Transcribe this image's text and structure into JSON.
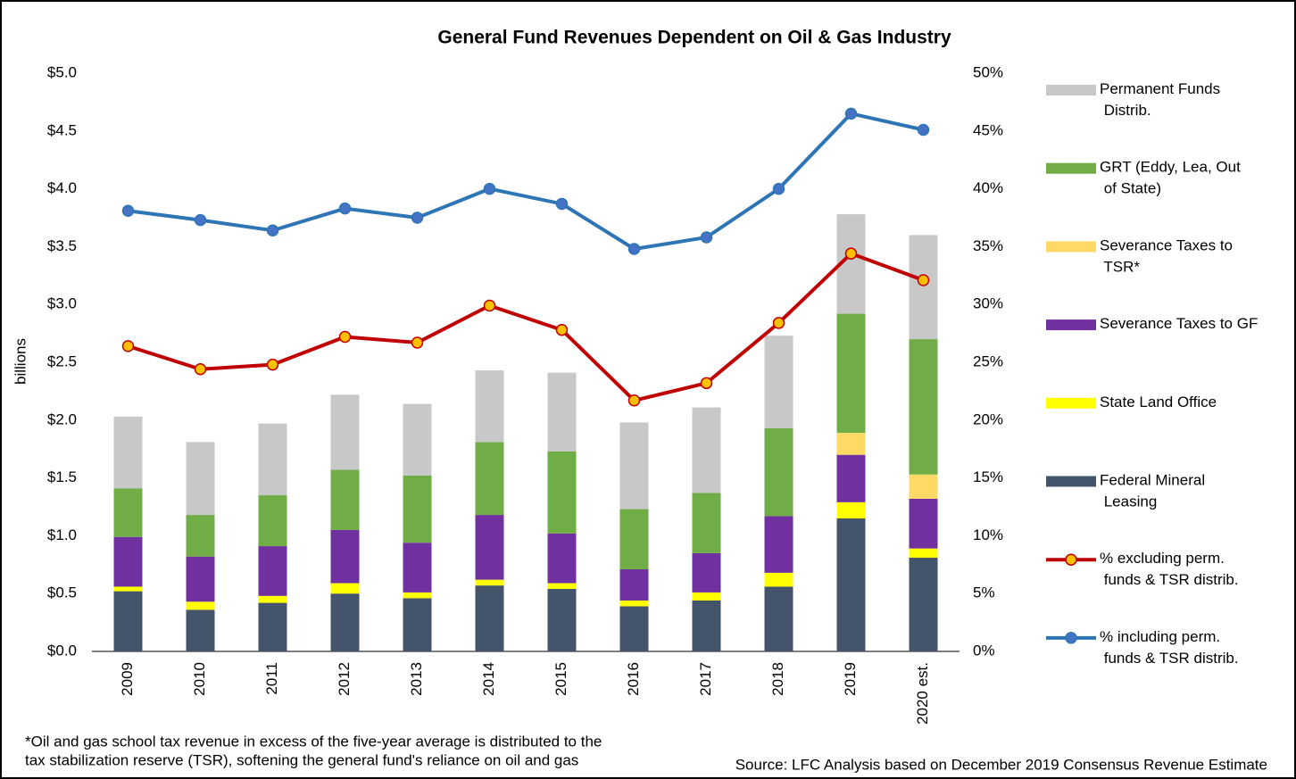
{
  "chart_data": {
    "type": "bar",
    "stacked": true,
    "title": "General Fund Revenues Dependent on Oil & Gas Industry",
    "y_label": "billions",
    "categories": [
      "2009",
      "2010",
      "2011",
      "2012",
      "2013",
      "2014",
      "2015",
      "2016",
      "2017",
      "2018",
      "2019",
      "2020 est."
    ],
    "ylim": [
      0,
      5
    ],
    "yticks": [
      {
        "value": 0,
        "label": "$0.0"
      },
      {
        "value": 0.5,
        "label": "$0.5"
      },
      {
        "value": 1,
        "label": "$1.0"
      },
      {
        "value": 1.5,
        "label": "$1.5"
      },
      {
        "value": 2,
        "label": "$2.0"
      },
      {
        "value": 2.5,
        "label": "$2.5"
      },
      {
        "value": 3,
        "label": "$3.0"
      },
      {
        "value": 3.5,
        "label": "$3.5"
      },
      {
        "value": 4,
        "label": "$4.0"
      },
      {
        "value": 4.5,
        "label": "$4.5"
      },
      {
        "value": 5,
        "label": "$5.0"
      }
    ],
    "y2lim": [
      0,
      50
    ],
    "y2ticks": [
      {
        "value": 0,
        "label": "0%"
      },
      {
        "value": 5,
        "label": "5%"
      },
      {
        "value": 10,
        "label": "10%"
      },
      {
        "value": 15,
        "label": "15%"
      },
      {
        "value": 20,
        "label": "20%"
      },
      {
        "value": 25,
        "label": "25%"
      },
      {
        "value": 30,
        "label": "30%"
      },
      {
        "value": 35,
        "label": "35%"
      },
      {
        "value": 40,
        "label": "40%"
      },
      {
        "value": 45,
        "label": "45%"
      },
      {
        "value": 50,
        "label": "50%"
      }
    ],
    "series": [
      {
        "name": "Federal Mineral Leasing",
        "type": "bar",
        "color": "#44546a",
        "values": [
          0.52,
          0.36,
          0.42,
          0.5,
          0.46,
          0.57,
          0.54,
          0.39,
          0.44,
          0.56,
          1.15,
          0.81
        ]
      },
      {
        "name": "State Land Office",
        "type": "bar",
        "color": "#ffff00",
        "values": [
          0.04,
          0.07,
          0.06,
          0.09,
          0.05,
          0.05,
          0.05,
          0.05,
          0.07,
          0.12,
          0.14,
          0.08
        ]
      },
      {
        "name": "Severance Taxes to GF",
        "type": "bar",
        "color": "#7030a0",
        "values": [
          0.43,
          0.39,
          0.43,
          0.46,
          0.43,
          0.56,
          0.43,
          0.27,
          0.34,
          0.49,
          0.41,
          0.43
        ]
      },
      {
        "name": "Severance Taxes to TSR*",
        "type": "bar",
        "color": "#ffd966",
        "values": [
          0,
          0,
          0,
          0,
          0,
          0,
          0,
          0,
          0,
          0,
          0.19,
          0.21
        ]
      },
      {
        "name": "GRT (Eddy, Lea, Out of State)",
        "type": "bar",
        "color": "#70ad47",
        "values": [
          0.42,
          0.36,
          0.44,
          0.52,
          0.58,
          0.63,
          0.71,
          0.52,
          0.52,
          0.76,
          1.03,
          1.17
        ]
      },
      {
        "name": "Permanent Funds Distrib.",
        "type": "bar",
        "color": "#c8c8c8",
        "values": [
          0.62,
          0.63,
          0.62,
          0.65,
          0.62,
          0.62,
          0.68,
          0.75,
          0.74,
          0.8,
          0.86,
          0.9
        ]
      },
      {
        "name": "% excluding perm. funds & TSR distrib.",
        "type": "line",
        "axis": "y2",
        "color": "#c00000",
        "marker_color": "#ffc000",
        "values": [
          26.4,
          24.4,
          24.8,
          27.2,
          26.7,
          29.9,
          27.8,
          21.7,
          23.2,
          28.4,
          34.4,
          32.1
        ]
      },
      {
        "name": "% including perm. funds & TSR distrib.",
        "type": "line",
        "axis": "y2",
        "color": "#2e75b6",
        "marker_color": "#4472c4",
        "values": [
          38.1,
          37.3,
          36.4,
          38.3,
          37.5,
          40.0,
          38.7,
          34.8,
          35.8,
          40.0,
          46.5,
          45.1
        ]
      }
    ],
    "footnote": [
      "*Oil and gas school tax revenue in excess of the five-year average is distributed to the",
      "tax stabilization reserve (TSR), softening the general fund's reliance on oil and gas"
    ],
    "source": "Source: LFC Analysis based on December 2019 Consensus Revenue Estimate"
  }
}
